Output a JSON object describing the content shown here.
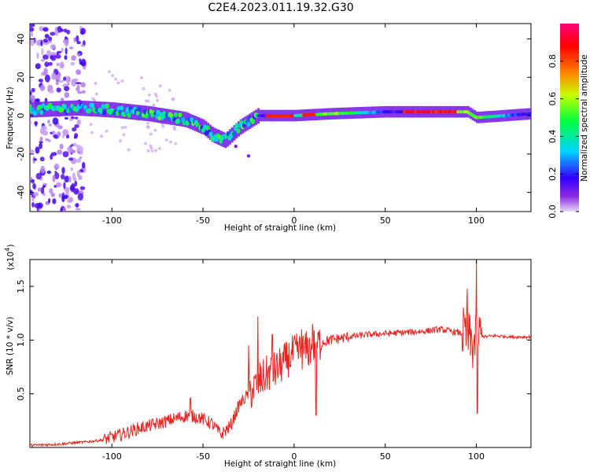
{
  "title": "C2E4.2023.011.19.32.G30",
  "chart_data": [
    {
      "type": "heatmap",
      "xlabel": "Height of straight line (km)",
      "ylabel": "Frequency (Hz)",
      "xlim": [
        -145,
        130
      ],
      "ylim": [
        -50,
        48
      ],
      "xticks": [
        -100,
        -50,
        0,
        50,
        100
      ],
      "yticks": [
        -40,
        -20,
        0,
        20,
        40
      ],
      "xtick_labels": [
        "-100",
        "-50",
        "0",
        "50",
        "100"
      ],
      "ytick_labels": [
        "-40",
        "-20",
        "0",
        "20",
        "40"
      ],
      "colorbar": {
        "label": "Normalized spectral amplitude",
        "range": [
          0,
          1
        ],
        "ticks": [
          0.0,
          0.2,
          0.4,
          0.6,
          0.8
        ],
        "tick_labels": [
          "0.0",
          "0.2",
          "0.4",
          "0.6",
          "0.8"
        ],
        "colors": [
          "#e6d8f6",
          "#8a2be2",
          "#3300ff",
          "#00d4ff",
          "#00ff40",
          "#ffff00",
          "#ff8000",
          "#ff0000",
          "#ff0080"
        ]
      },
      "ridge": [
        {
          "x": -145,
          "y": 3
        },
        {
          "x": -120,
          "y": 4
        },
        {
          "x": -100,
          "y": 3
        },
        {
          "x": -80,
          "y": 1
        },
        {
          "x": -60,
          "y": -2
        },
        {
          "x": -50,
          "y": -6
        },
        {
          "x": -45,
          "y": -10
        },
        {
          "x": -38,
          "y": -13
        },
        {
          "x": -30,
          "y": -6
        },
        {
          "x": -20,
          "y": 0
        },
        {
          "x": 0,
          "y": 0
        },
        {
          "x": 20,
          "y": 1
        },
        {
          "x": 50,
          "y": 2
        },
        {
          "x": 75,
          "y": 2
        },
        {
          "x": 95,
          "y": 2
        },
        {
          "x": 100,
          "y": -1
        },
        {
          "x": 130,
          "y": 1
        }
      ]
    },
    {
      "type": "line",
      "xlabel": "Height of straight line (km)",
      "ylabel": "SNR (10 * v/v)",
      "yscale_label": "(x10",
      "yscale_exp": "4",
      "yscale_close": ")",
      "xlim": [
        -145,
        130
      ],
      "ylim": [
        0,
        1.75
      ],
      "xticks": [
        -100,
        -50,
        0,
        50,
        100
      ],
      "yticks": [
        0.5,
        1.0,
        1.5
      ],
      "xtick_labels": [
        "-100",
        "-50",
        "0",
        "50",
        "100"
      ],
      "ytick_labels": [
        "0.5",
        "1.0",
        "1.5"
      ],
      "color": "#e8251f",
      "series": [
        {
          "values_x": [
            -145,
            -130,
            -115,
            -105,
            -95,
            -85,
            -75,
            -65,
            -58,
            -52,
            -45,
            -40,
            -35,
            -30,
            -25,
            -22,
            -20,
            -15,
            -10,
            -5,
            0,
            5,
            10,
            12,
            15,
            20,
            30,
            40,
            50,
            60,
            70,
            80,
            90,
            95,
            98,
            100,
            102,
            105,
            110,
            120,
            130
          ],
          "values_y": [
            0.02,
            0.03,
            0.05,
            0.07,
            0.12,
            0.18,
            0.22,
            0.27,
            0.3,
            0.28,
            0.22,
            0.12,
            0.2,
            0.4,
            0.5,
            0.55,
            0.6,
            0.68,
            0.72,
            0.8,
            0.88,
            0.9,
            0.93,
            0.96,
            0.98,
            1.0,
            1.03,
            1.05,
            1.06,
            1.07,
            1.08,
            1.1,
            1.07,
            1.05,
            0.95,
            1.0,
            1.05,
            1.03,
            1.04,
            1.03,
            1.03
          ]
        }
      ],
      "spikes": [
        {
          "x": -57,
          "y": 0.46
        },
        {
          "x": -25,
          "y": 0.95
        },
        {
          "x": -20,
          "y": 1.22
        },
        {
          "x": -12,
          "y": 1.05
        },
        {
          "x": 4,
          "y": 1.1
        },
        {
          "x": 10,
          "y": 1.15
        },
        {
          "x": 12,
          "y": 0.3
        },
        {
          "x": 95,
          "y": 1.48
        },
        {
          "x": 100,
          "y": 1.75
        },
        {
          "x": 100.5,
          "y": 0.32
        }
      ]
    }
  ]
}
